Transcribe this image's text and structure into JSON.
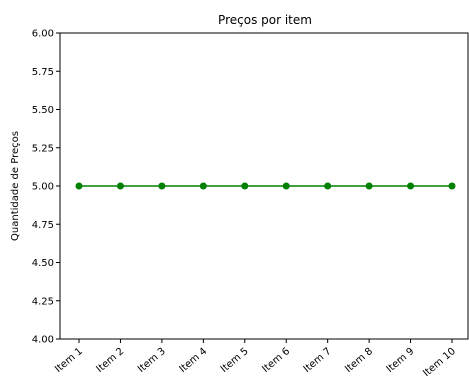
{
  "chart_data": {
    "type": "line",
    "title": "Preços por item",
    "xlabel": "",
    "ylabel": "Quantidade de Preços",
    "categories": [
      "Item 1",
      "Item 2",
      "Item 3",
      "Item 4",
      "Item 5",
      "Item 6",
      "Item 7",
      "Item 8",
      "Item 9",
      "Item 10"
    ],
    "series": [
      {
        "values": [
          5,
          5,
          5,
          5,
          5,
          5,
          5,
          5,
          5,
          5
        ],
        "color": "#008000",
        "marker": "circle"
      }
    ],
    "ylim": [
      4.0,
      6.0
    ],
    "yticks": [
      "4.00",
      "4.25",
      "4.50",
      "4.75",
      "5.00",
      "5.25",
      "5.50",
      "5.75",
      "6.00"
    ],
    "grid": false,
    "legend": false
  }
}
